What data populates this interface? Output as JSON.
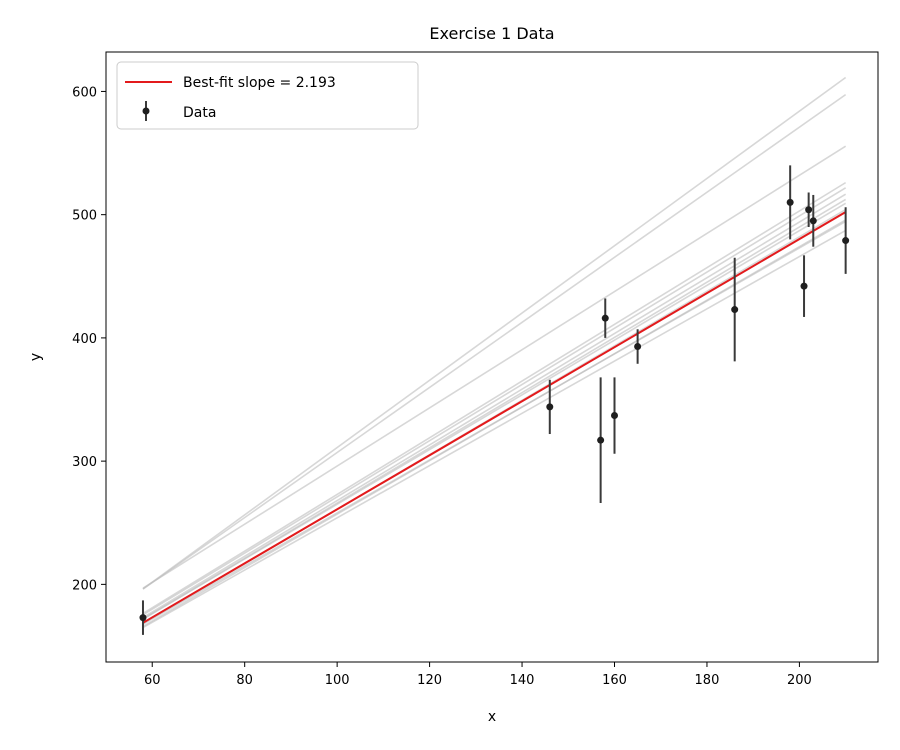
{
  "chart_data": {
    "type": "scatter",
    "title": "Exercise 1 Data",
    "xlabel": "x",
    "ylabel": "y",
    "xlim": [
      50,
      217
    ],
    "ylim": [
      137,
      632
    ],
    "xticks": [
      60,
      80,
      100,
      120,
      140,
      160,
      180,
      200
    ],
    "yticks": [
      200,
      300,
      400,
      500,
      600
    ],
    "grid": false,
    "legend": {
      "placement": "top-left"
    },
    "colors": {
      "fit": "#e31a1c",
      "data": "#1f1f1f",
      "samples": "#bdbdbd",
      "errorbar": "#3a3a3a"
    },
    "best_fit": {
      "name": "Best-fit slope = 2.193",
      "slope": 2.193,
      "intercept": 41.6,
      "x_range": [
        58,
        210
      ]
    },
    "sample_lines": [
      {
        "slope": 2.73,
        "intercept": 38
      },
      {
        "slope": 2.64,
        "intercept": 43
      },
      {
        "slope": 2.36,
        "intercept": 60
      },
      {
        "slope": 2.3,
        "intercept": 43
      },
      {
        "slope": 2.28,
        "intercept": 43
      },
      {
        "slope": 2.26,
        "intercept": 42
      },
      {
        "slope": 2.24,
        "intercept": 42
      },
      {
        "slope": 2.22,
        "intercept": 43
      },
      {
        "slope": 2.21,
        "intercept": 40
      },
      {
        "slope": 2.19,
        "intercept": 42
      },
      {
        "slope": 2.17,
        "intercept": 40
      },
      {
        "slope": 2.15,
        "intercept": 43
      },
      {
        "slope": 2.12,
        "intercept": 42
      }
    ],
    "series": [
      {
        "name": "Data",
        "points": [
          {
            "x": 58,
            "y": 173,
            "err": 14
          },
          {
            "x": 146,
            "y": 344,
            "err": 22
          },
          {
            "x": 157,
            "y": 317,
            "err": 51
          },
          {
            "x": 158,
            "y": 416,
            "err": 16
          },
          {
            "x": 160,
            "y": 337,
            "err": 31
          },
          {
            "x": 165,
            "y": 393,
            "err": 14
          },
          {
            "x": 186,
            "y": 423,
            "err": 42
          },
          {
            "x": 198,
            "y": 510,
            "err": 30
          },
          {
            "x": 201,
            "y": 442,
            "err": 25
          },
          {
            "x": 202,
            "y": 504,
            "err": 14
          },
          {
            "x": 203,
            "y": 495,
            "err": 21
          },
          {
            "x": 210,
            "y": 479,
            "err": 27
          }
        ]
      }
    ]
  }
}
